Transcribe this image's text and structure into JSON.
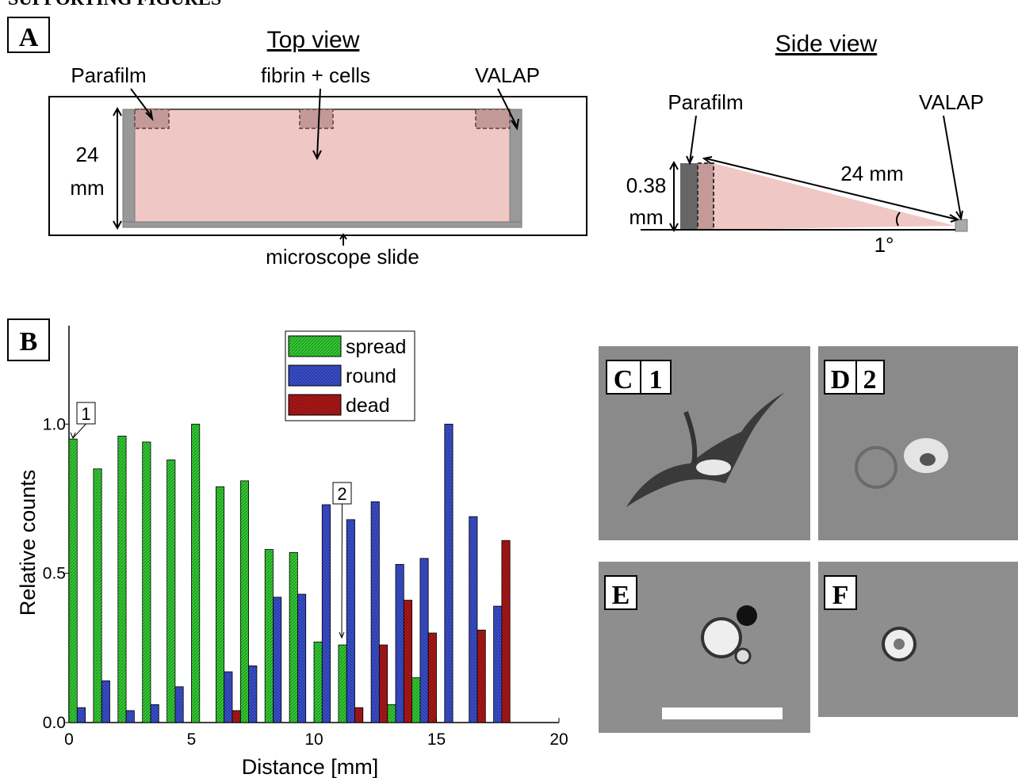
{
  "header": {
    "title": "SUPPORTING FIGURES"
  },
  "panel_a": {
    "label": "A",
    "top_view": {
      "title": "Top view",
      "parafilm": "Parafilm",
      "fibrin": "fibrin + cells",
      "valap": "VALAP",
      "width_value": "24",
      "width_unit": "mm",
      "slide": "microscope slide"
    },
    "side_view": {
      "title": "Side view",
      "parafilm": "Parafilm",
      "valap": "VALAP",
      "height_value": "0.38",
      "height_unit": "mm",
      "length": "24 mm",
      "angle": "1°"
    }
  },
  "panel_b": {
    "label": "B"
  },
  "chart_data": {
    "type": "bar",
    "x_label": "Distance [mm]",
    "y_label": "Relative counts",
    "x": [
      0,
      1,
      2,
      3,
      4,
      5,
      6,
      7,
      8,
      9,
      10,
      11,
      12,
      13,
      14,
      15,
      16,
      17
    ],
    "series": [
      {
        "name": "spread",
        "color": "#33cc33",
        "values": [
          0.95,
          0.85,
          0.96,
          0.94,
          0.88,
          1.0,
          0.79,
          0.81,
          0.58,
          0.57,
          0.27,
          0.26,
          0,
          0.06,
          0.15,
          0,
          0,
          0
        ]
      },
      {
        "name": "round",
        "color": "#3a4fd0",
        "values": [
          0.05,
          0.14,
          0.04,
          0.06,
          0.12,
          0,
          0.17,
          0.19,
          0.42,
          0.43,
          0.73,
          0.68,
          0.74,
          0.53,
          0.55,
          1.0,
          0.69,
          0.39
        ]
      },
      {
        "name": "dead",
        "color": "#c41a1a",
        "values": [
          0,
          0,
          0,
          0,
          0,
          0,
          0.04,
          0,
          0,
          0,
          0,
          0.05,
          0.26,
          0.41,
          0.3,
          0,
          0.31,
          0.61
        ]
      }
    ],
    "xlim": [
      0,
      20
    ],
    "xticks": [
      0,
      5,
      10,
      15,
      20
    ],
    "ylim": [
      0,
      1.33
    ],
    "yticks": [
      {
        "value": 0,
        "label": "0.0"
      },
      {
        "value": 0.5,
        "label": "0.5"
      },
      {
        "value": 1.0,
        "label": "1.0"
      }
    ],
    "annotations": [
      "1",
      "2"
    ]
  },
  "micrographs": {
    "c": [
      "C",
      "1"
    ],
    "d": [
      "D",
      "2"
    ],
    "e": [
      "E"
    ],
    "f": [
      "F"
    ]
  }
}
